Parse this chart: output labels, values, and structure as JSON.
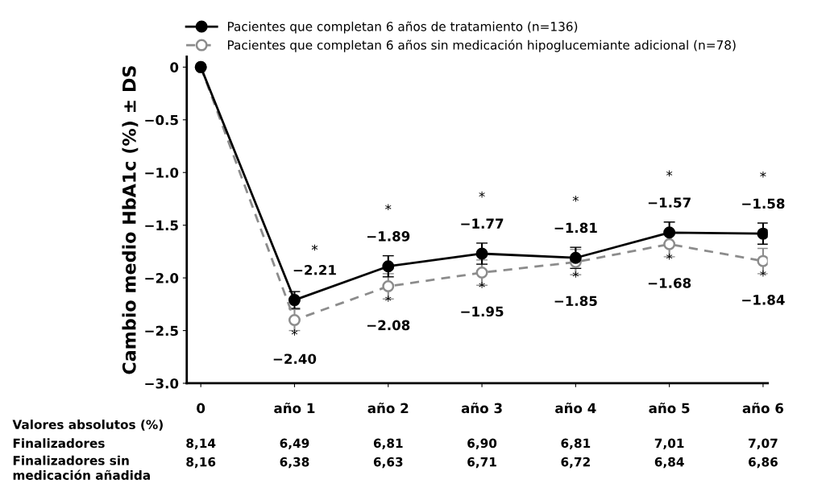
{
  "chart_data": {
    "type": "line",
    "ylabel": "Cambio medio HbA1c (%) ± DS",
    "categories": [
      "0",
      "año 1",
      "año 2",
      "año 3",
      "año 4",
      "año 5",
      "año 6"
    ],
    "ylim": [
      -3.0,
      0.1
    ],
    "yticks": [
      0,
      {
        "value": -0.5,
        "label": "−0.5"
      },
      {
        "value": -1.0,
        "label": "−1.0"
      },
      {
        "value": -1.5,
        "label": "−1.5"
      },
      {
        "value": -2.0,
        "label": "−2.0"
      },
      {
        "value": -2.5,
        "label": "−2.5"
      },
      {
        "value": -3.0,
        "label": "−3.0"
      }
    ],
    "series": [
      {
        "name": "Pacientes que completan 6 años de tratamiento (n=136)",
        "color": "#000000",
        "line_style": "solid",
        "values": [
          0,
          -2.21,
          -1.89,
          -1.77,
          -1.81,
          -1.57,
          -1.58
        ],
        "errors": [
          null,
          0.08,
          0.1,
          0.1,
          0.1,
          0.1,
          0.1
        ],
        "value_labels": [
          null,
          "−2.21",
          "−1.89",
          "−1.77",
          "−1.81",
          "−1.57",
          "−1.58"
        ]
      },
      {
        "name": "Pacientes que completan 6 años sin medicación hipoglucemiante adicional (n=78)",
        "color": "#8c8c8c",
        "line_style": "dashed",
        "values": [
          0,
          -2.4,
          -2.08,
          -1.95,
          -1.85,
          -1.68,
          -1.84
        ],
        "errors": [
          null,
          0.1,
          0.12,
          0.12,
          0.12,
          0.12,
          0.12
        ],
        "value_labels": [
          null,
          "−2.40",
          "−2.08",
          "−1.95",
          "−1.85",
          "−1.68",
          "−1.84"
        ]
      }
    ],
    "marker": "circle",
    "legend": "top",
    "grid": false,
    "annotations": [
      "*",
      "*",
      "*",
      "*",
      "*",
      "*",
      "*",
      "*",
      "*",
      "*",
      "*",
      "*",
      "Valores absolutos (%)",
      "Finalizadores\t8,14\t6,49\t6,81\t6,90\t6,81\t7,01\t7,07",
      "Finalizadores sin\nmedicación añadida\t8,16\t6,38\t6,63\t6,71\t6,72\t6,84\t6,86"
    ]
  }
}
